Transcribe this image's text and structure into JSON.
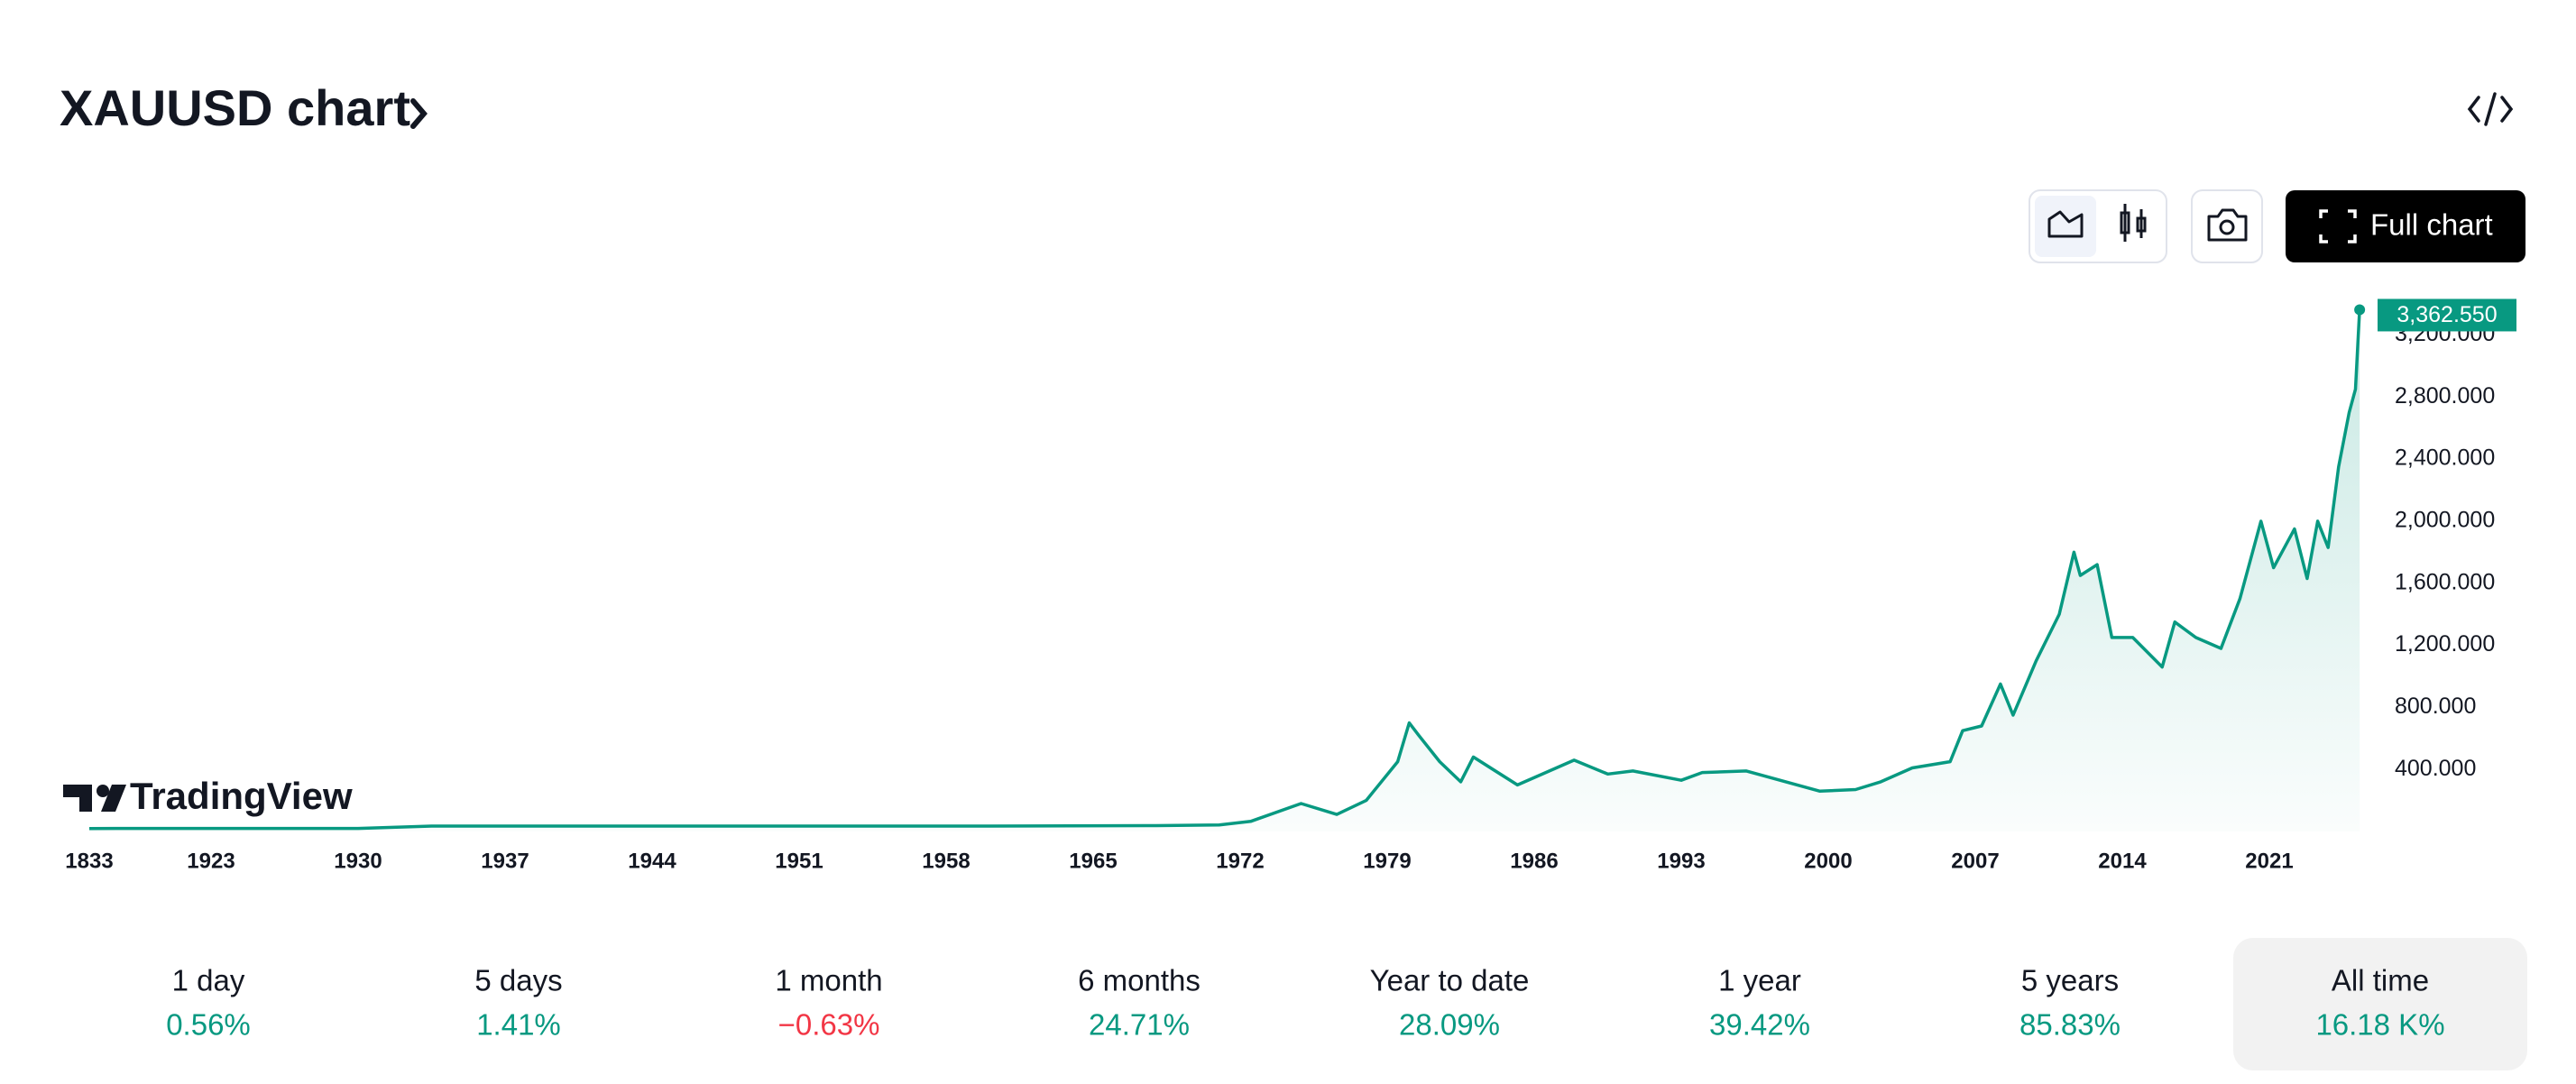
{
  "header": {
    "title": "XAUUSD chart"
  },
  "toolbar": {
    "full_chart": "Full chart"
  },
  "logo": "TradingView",
  "chart_data": {
    "type": "line",
    "series": [
      {
        "name": "XAUUSD",
        "color": "#089981",
        "x": [
          1833,
          1860,
          1900,
          1923,
          1930,
          1933.5,
          1935,
          1950,
          1960,
          1968,
          1971,
          1972.5,
          1974.9,
          1976.6,
          1978,
          1979.5,
          1980.05,
          1980.5,
          1981.5,
          1982.5,
          1983.1,
          1985.2,
          1987.9,
          1989.5,
          1990.7,
          1993,
          1994,
          1996.1,
          1999.6,
          2001.3,
          2002.5,
          2004,
          2005.8,
          2006.4,
          2007.3,
          2008.2,
          2008.8,
          2009.9,
          2011.0,
          2011.7,
          2012.0,
          2012.8,
          2013.5,
          2014.5,
          2015.9,
          2016.5,
          2017.5,
          2018.7,
          2019.6,
          2020.6,
          2021.2,
          2022.2,
          2022.8,
          2023.3,
          2023.8,
          2024.3,
          2024.8,
          2025.1,
          2025.3
        ],
        "values": [
          19,
          20,
          20,
          20,
          20,
          35,
          35,
          35,
          35,
          38,
          42,
          65,
          180,
          110,
          200,
          450,
          700,
          620,
          450,
          320,
          480,
          300,
          460,
          370,
          390,
          330,
          380,
          390,
          260,
          270,
          320,
          410,
          450,
          650,
          680,
          950,
          750,
          1100,
          1400,
          1800,
          1650,
          1720,
          1250,
          1250,
          1060,
          1350,
          1250,
          1180,
          1500,
          2000,
          1700,
          1950,
          1630,
          2000,
          1830,
          2350,
          2700,
          2850,
          3362.55
        ]
      }
    ],
    "last_label": "3,362.550",
    "xticks": [
      1833,
      1923,
      1930,
      1937,
      1944,
      1951,
      1958,
      1965,
      1972,
      1979,
      1986,
      1993,
      2000,
      2007,
      2014,
      2021
    ],
    "ylim": [
      0,
      3400
    ],
    "yticks": [
      {
        "value": 400,
        "label": "400.000"
      },
      {
        "value": 800,
        "label": "800.000"
      },
      {
        "value": 1200,
        "label": "1,200.000"
      },
      {
        "value": 1600,
        "label": "1,600.000"
      },
      {
        "value": 2000,
        "label": "2,000.000"
      },
      {
        "value": 2400,
        "label": "2,400.000"
      },
      {
        "value": 2800,
        "label": "2,800.000"
      },
      {
        "value": 3200,
        "label": "3,200.000"
      }
    ]
  },
  "periods": [
    {
      "label": "1 day",
      "change": "0.56%"
    },
    {
      "label": "5 days",
      "change": "1.41%"
    },
    {
      "label": "1 month",
      "change": "−0.63%"
    },
    {
      "label": "6 months",
      "change": "24.71%"
    },
    {
      "label": "Year to date",
      "change": "28.09%"
    },
    {
      "label": "1 year",
      "change": "39.42%"
    },
    {
      "label": "5 years",
      "change": "85.83%"
    },
    {
      "label": "All time",
      "change": "16.18 K%",
      "selected": true
    }
  ]
}
